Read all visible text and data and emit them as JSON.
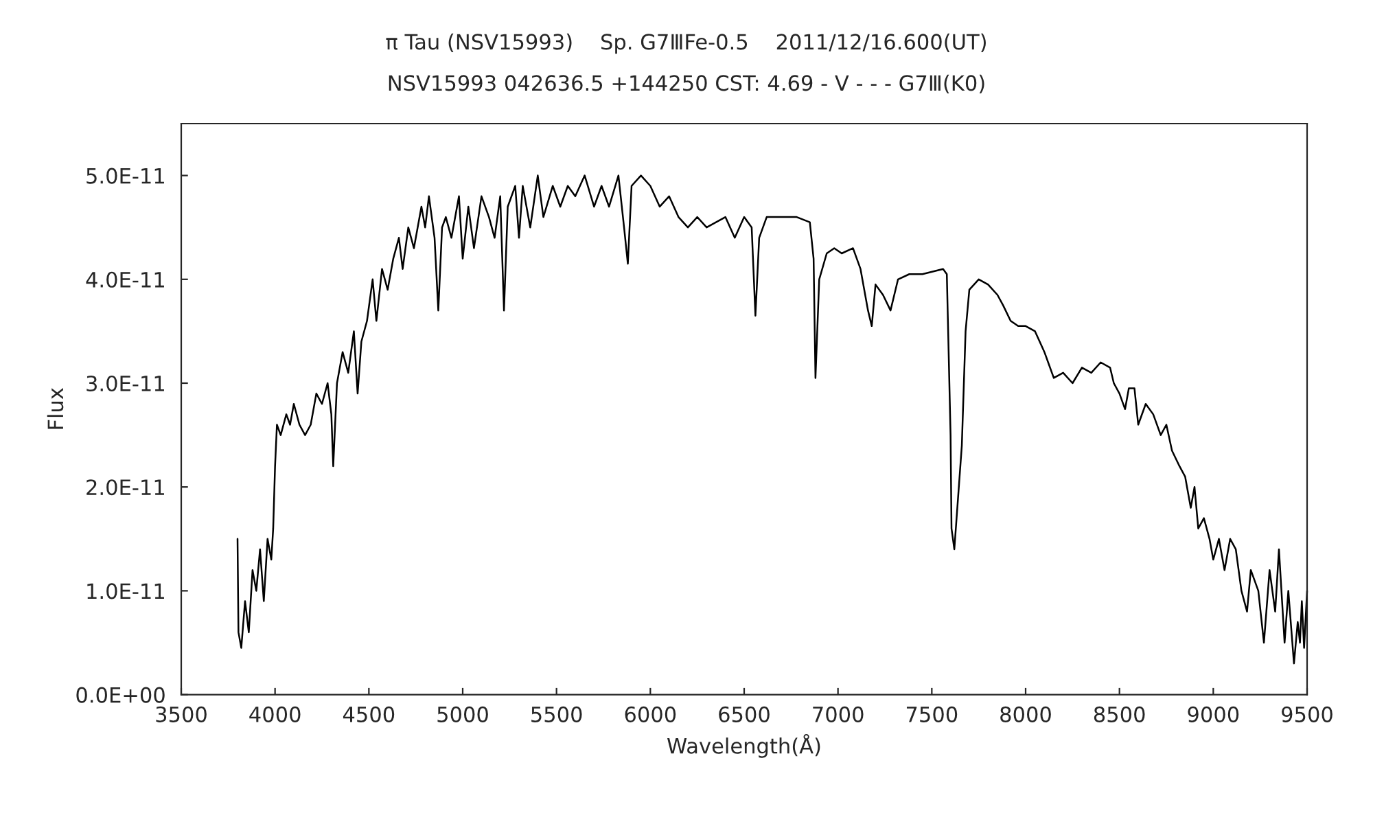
{
  "chart_data": {
    "type": "line",
    "title": "π Tau (NSV15993)    Sp. G7ⅢFe-0.5    2011/12/16.600(UT)",
    "subtitle": "NSV15993 042636.5 +144250 CST: 4.69 - V - - - G7Ⅲ(K0)",
    "xlabel": "Wavelength(Å)",
    "ylabel": "Flux",
    "xlim": [
      3500,
      9500
    ],
    "xticks": [
      3500,
      4000,
      4500,
      5000,
      5500,
      6000,
      6500,
      7000,
      7500,
      8000,
      8500,
      9000,
      9500
    ],
    "ylim": [
      0,
      5.5e-11
    ],
    "yticks": [
      {
        "value": 0,
        "label": "0.0E+00"
      },
      {
        "value": 1e-11,
        "label": "1.0E-11"
      },
      {
        "value": 2e-11,
        "label": "2.0E-11"
      },
      {
        "value": 3e-11,
        "label": "3.0E-11"
      },
      {
        "value": 4e-11,
        "label": "4.0E-11"
      },
      {
        "value": 5e-11,
        "label": "5.0E-11"
      }
    ],
    "grid": false,
    "marker": "none",
    "line_style": "solid",
    "series": [
      {
        "color": "#000000",
        "x": [
          3800,
          3805,
          3820,
          3840,
          3860,
          3880,
          3900,
          3920,
          3940,
          3960,
          3980,
          3990,
          4000,
          4010,
          4030,
          4060,
          4080,
          4100,
          4130,
          4160,
          4190,
          4220,
          4250,
          4280,
          4300,
          4310,
          4330,
          4360,
          4390,
          4420,
          4440,
          4460,
          4490,
          4520,
          4540,
          4570,
          4600,
          4630,
          4660,
          4680,
          4710,
          4740,
          4780,
          4800,
          4820,
          4850,
          4870,
          4890,
          4910,
          4940,
          4980,
          5000,
          5030,
          5060,
          5100,
          5140,
          5170,
          5200,
          5220,
          5240,
          5280,
          5300,
          5320,
          5360,
          5400,
          5430,
          5480,
          5520,
          5560,
          5600,
          5650,
          5700,
          5740,
          5780,
          5830,
          5860,
          5880,
          5900,
          5950,
          6000,
          6050,
          6100,
          6150,
          6200,
          6250,
          6300,
          6350,
          6400,
          6450,
          6500,
          6540,
          6560,
          6580,
          6620,
          6700,
          6780,
          6850,
          6870,
          6880,
          6900,
          6940,
          6980,
          7020,
          7080,
          7120,
          7160,
          7180,
          7200,
          7240,
          7280,
          7320,
          7380,
          7450,
          7560,
          7580,
          7600,
          7605,
          7620,
          7640,
          7660,
          7680,
          7700,
          7750,
          7800,
          7850,
          7880,
          7920,
          7960,
          8000,
          8050,
          8100,
          8150,
          8200,
          8250,
          8300,
          8350,
          8400,
          8450,
          8470,
          8500,
          8530,
          8550,
          8580,
          8600,
          8640,
          8680,
          8720,
          8750,
          8780,
          8820,
          8850,
          8880,
          8900,
          8920,
          8950,
          8980,
          9000,
          9030,
          9060,
          9090,
          9120,
          9150,
          9180,
          9200,
          9240,
          9270,
          9300,
          9330,
          9350,
          9380,
          9400,
          9430,
          9450,
          9462,
          9472,
          9484,
          9500
        ],
        "values": [
          1.5e-11,
          6e-12,
          4.5e-12,
          9e-12,
          6e-12,
          1.2e-11,
          1e-11,
          1.4e-11,
          9e-12,
          1.5e-11,
          1.3e-11,
          1.6e-11,
          2.2e-11,
          2.6e-11,
          2.5e-11,
          2.7e-11,
          2.6e-11,
          2.8e-11,
          2.6e-11,
          2.5e-11,
          2.6e-11,
          2.9e-11,
          2.8e-11,
          3e-11,
          2.7e-11,
          2.2e-11,
          3e-11,
          3.3e-11,
          3.1e-11,
          3.5e-11,
          2.9e-11,
          3.4e-11,
          3.6e-11,
          4e-11,
          3.6e-11,
          4.1e-11,
          3.9e-11,
          4.2e-11,
          4.4e-11,
          4.1e-11,
          4.5e-11,
          4.3e-11,
          4.7e-11,
          4.5e-11,
          4.8e-11,
          4.4e-11,
          3.7e-11,
          4.5e-11,
          4.6e-11,
          4.4e-11,
          4.8e-11,
          4.2e-11,
          4.7e-11,
          4.3e-11,
          4.8e-11,
          4.6e-11,
          4.4e-11,
          4.8e-11,
          3.7e-11,
          4.7e-11,
          4.9e-11,
          4.4e-11,
          4.9e-11,
          4.5e-11,
          5e-11,
          4.6e-11,
          4.9e-11,
          4.7e-11,
          4.9e-11,
          4.8e-11,
          5e-11,
          4.7e-11,
          4.9e-11,
          4.7e-11,
          5e-11,
          4.5e-11,
          4.15e-11,
          4.9e-11,
          5e-11,
          4.9e-11,
          4.7e-11,
          4.8e-11,
          4.6e-11,
          4.5e-11,
          4.6e-11,
          4.5e-11,
          4.55e-11,
          4.6e-11,
          4.4e-11,
          4.6e-11,
          4.5e-11,
          3.65e-11,
          4.4e-11,
          4.6e-11,
          4.6e-11,
          4.6e-11,
          4.55e-11,
          4.2e-11,
          3.05e-11,
          4e-11,
          4.25e-11,
          4.3e-11,
          4.25e-11,
          4.3e-11,
          4.1e-11,
          3.7e-11,
          3.55e-11,
          3.95e-11,
          3.85e-11,
          3.7e-11,
          4e-11,
          4.05e-11,
          4.05e-11,
          4.1e-11,
          4.05e-11,
          2.5e-11,
          1.6e-11,
          1.4e-11,
          1.9e-11,
          2.4e-11,
          3.5e-11,
          3.9e-11,
          4e-11,
          3.95e-11,
          3.85e-11,
          3.75e-11,
          3.6e-11,
          3.55e-11,
          3.55e-11,
          3.5e-11,
          3.3e-11,
          3.05e-11,
          3.1e-11,
          3e-11,
          3.15e-11,
          3.1e-11,
          3.2e-11,
          3.15e-11,
          3e-11,
          2.9e-11,
          2.75e-11,
          2.95e-11,
          2.95e-11,
          2.6e-11,
          2.8e-11,
          2.7e-11,
          2.5e-11,
          2.6e-11,
          2.35e-11,
          2.2e-11,
          2.1e-11,
          1.8e-11,
          2e-11,
          1.6e-11,
          1.7e-11,
          1.5e-11,
          1.3e-11,
          1.5e-11,
          1.2e-11,
          1.5e-11,
          1.4e-11,
          1e-11,
          8e-12,
          1.2e-11,
          1e-11,
          5e-12,
          1.2e-11,
          8e-12,
          1.4e-11,
          5e-12,
          1e-11,
          3e-12,
          7e-12,
          5e-12,
          9e-12,
          4.5e-12,
          1e-11
        ]
      }
    ]
  }
}
